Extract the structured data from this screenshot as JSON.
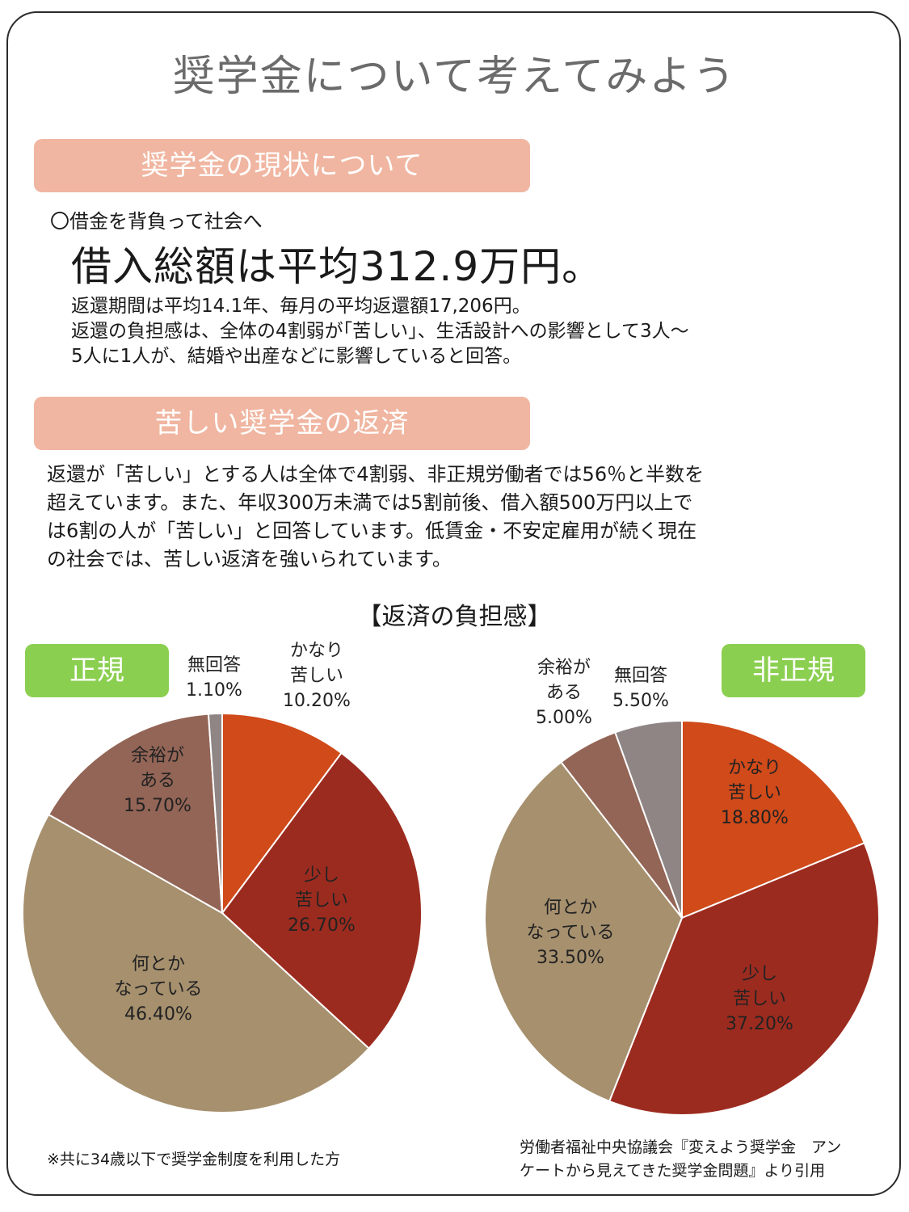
{
  "title": "奨学金について考えてみよう",
  "section1": {
    "banner": "奨学金の現状について",
    "sub": "〇借金を背負って社会へ",
    "headline": "借入総額は平均312.9万円。",
    "lines": [
      "返還期間は平均14.1年、毎月の平均返還額17,206円。",
      "返還の負担感は、全体の4割弱が｢苦しい｣、生活設計への影響として3人～",
      "5人に1人が、結婚や出産などに影響していると回答。"
    ]
  },
  "section2": {
    "banner": "苦しい奨学金の返済",
    "lines": [
      "返還が「苦しい」とする人は全体で4割弱、非正規労働者では56％と半数を",
      "超えています。また、年収300万未満では5割前後、借入額500万円以上で",
      "は6割の人が「苦しい」と回答しています。低賃金・不安定雇用が続く現在",
      "の社会では、苦しい返済を強いられています。"
    ]
  },
  "chart_data": [
    {
      "type": "pie",
      "title": "【返済の負担感】",
      "group": "正規",
      "slices": [
        {
          "label": [
            "かなり",
            "苦しい"
          ],
          "value": 10.2,
          "display": "10.20%",
          "color": "#d04a1a"
        },
        {
          "label": [
            "少し",
            "苦しい"
          ],
          "value": 26.7,
          "display": "26.70%",
          "color": "#9c2b1f"
        },
        {
          "label": [
            "何とか",
            "なっている"
          ],
          "value": 46.4,
          "display": "46.40%",
          "color": "#a6906e"
        },
        {
          "label": [
            "余裕が",
            "ある"
          ],
          "value": 15.7,
          "display": "15.70%",
          "color": "#936556"
        },
        {
          "label": [
            "無回答"
          ],
          "value": 1.1,
          "display": "1.10%",
          "color": "#8f8585"
        }
      ]
    },
    {
      "type": "pie",
      "title": "【返済の負担感】",
      "group": "非正規",
      "slices": [
        {
          "label": [
            "かなり",
            "苦しい"
          ],
          "value": 18.8,
          "display": "18.80%",
          "color": "#d04a1a"
        },
        {
          "label": [
            "少し",
            "苦しい"
          ],
          "value": 37.2,
          "display": "37.20%",
          "color": "#9c2b1f"
        },
        {
          "label": [
            "何とか",
            "なっている"
          ],
          "value": 33.5,
          "display": "33.50%",
          "color": "#a6906e"
        },
        {
          "label": [
            "余裕が",
            "ある"
          ],
          "value": 5.0,
          "display": "5.00%",
          "color": "#936556"
        },
        {
          "label": [
            "無回答"
          ],
          "value": 5.5,
          "display": "5.50%",
          "color": "#8f8585"
        }
      ]
    }
  ],
  "footnote": "※共に34歳以下で奨学金制度を利用した方",
  "source": [
    "労働者福祉中央協議会『変えよう奨学金　アン",
    "ケートから見えてきた奨学金問題』より引用"
  ]
}
